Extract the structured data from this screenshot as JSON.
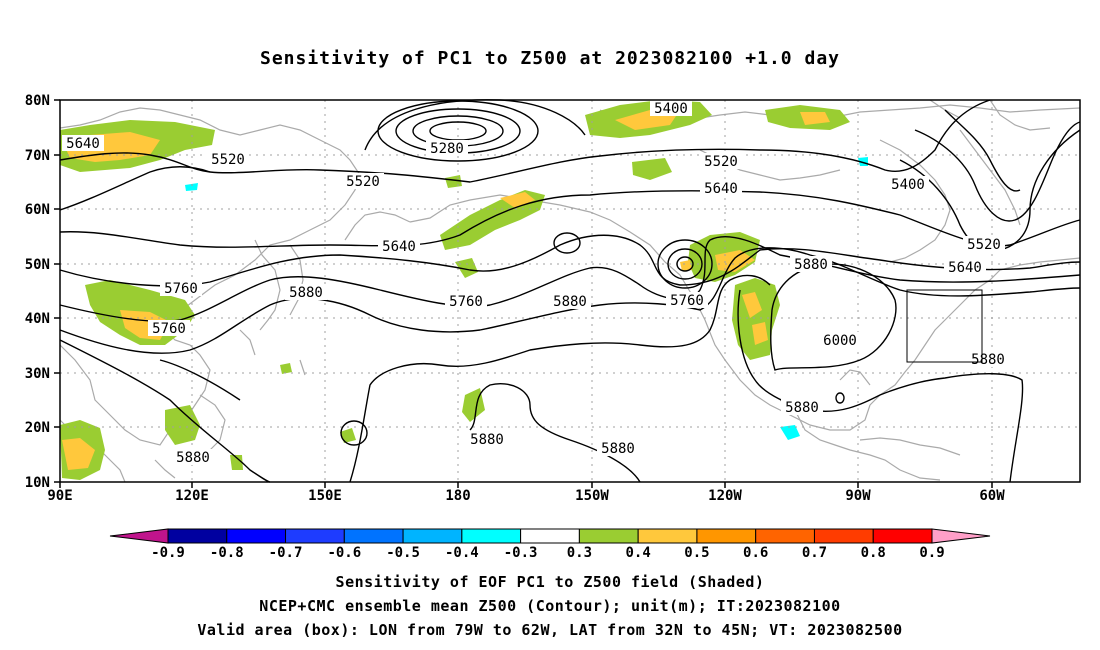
{
  "title": "Sensitivity of PC1 to Z500 at 2023082100 +1.0 day",
  "lat_labels": [
    "80N",
    "70N",
    "60N",
    "50N",
    "40N",
    "30N",
    "20N",
    "10N"
  ],
  "lon_labels": [
    "90E",
    "120E",
    "150E",
    "180",
    "150W",
    "120W",
    "90W",
    "60W"
  ],
  "contour_labels": [
    "5640",
    "5520",
    "5520",
    "5280",
    "5400",
    "5520",
    "5640",
    "5400",
    "5520",
    "5640",
    "5640",
    "5760",
    "5880",
    "5760",
    "5880",
    "5760",
    "5880",
    "5760",
    "6000",
    "5880",
    "5880",
    "5880",
    "5880",
    "5880"
  ],
  "colorbar": {
    "tick_labels": [
      "-0.9",
      "-0.8",
      "-0.7",
      "-0.6",
      "-0.5",
      "-0.4",
      "-0.3",
      "0.3",
      "0.4",
      "0.5",
      "0.6",
      "0.7",
      "0.8",
      "0.9"
    ],
    "colors": [
      "#0000a0",
      "#0000ff",
      "#1e3cff",
      "#0073ff",
      "#00b4ff",
      "#00ffff",
      "#ffffff",
      "#9acd32",
      "#ffc83c",
      "#ff9600",
      "#ff6400",
      "#ff3c00",
      "#ff0000"
    ],
    "low_end_color": "#c0148c",
    "high_end_color": "#ff9fc8"
  },
  "captions": [
    "Sensitivity of EOF PC1 to Z500 field (Shaded)",
    "NCEP+CMC ensemble mean Z500 (Contour); unit(m); IT:2023082100",
    "Valid area (box): LON from 79W to 62W, LAT from 32N to 45N; VT: 2023082500"
  ]
}
